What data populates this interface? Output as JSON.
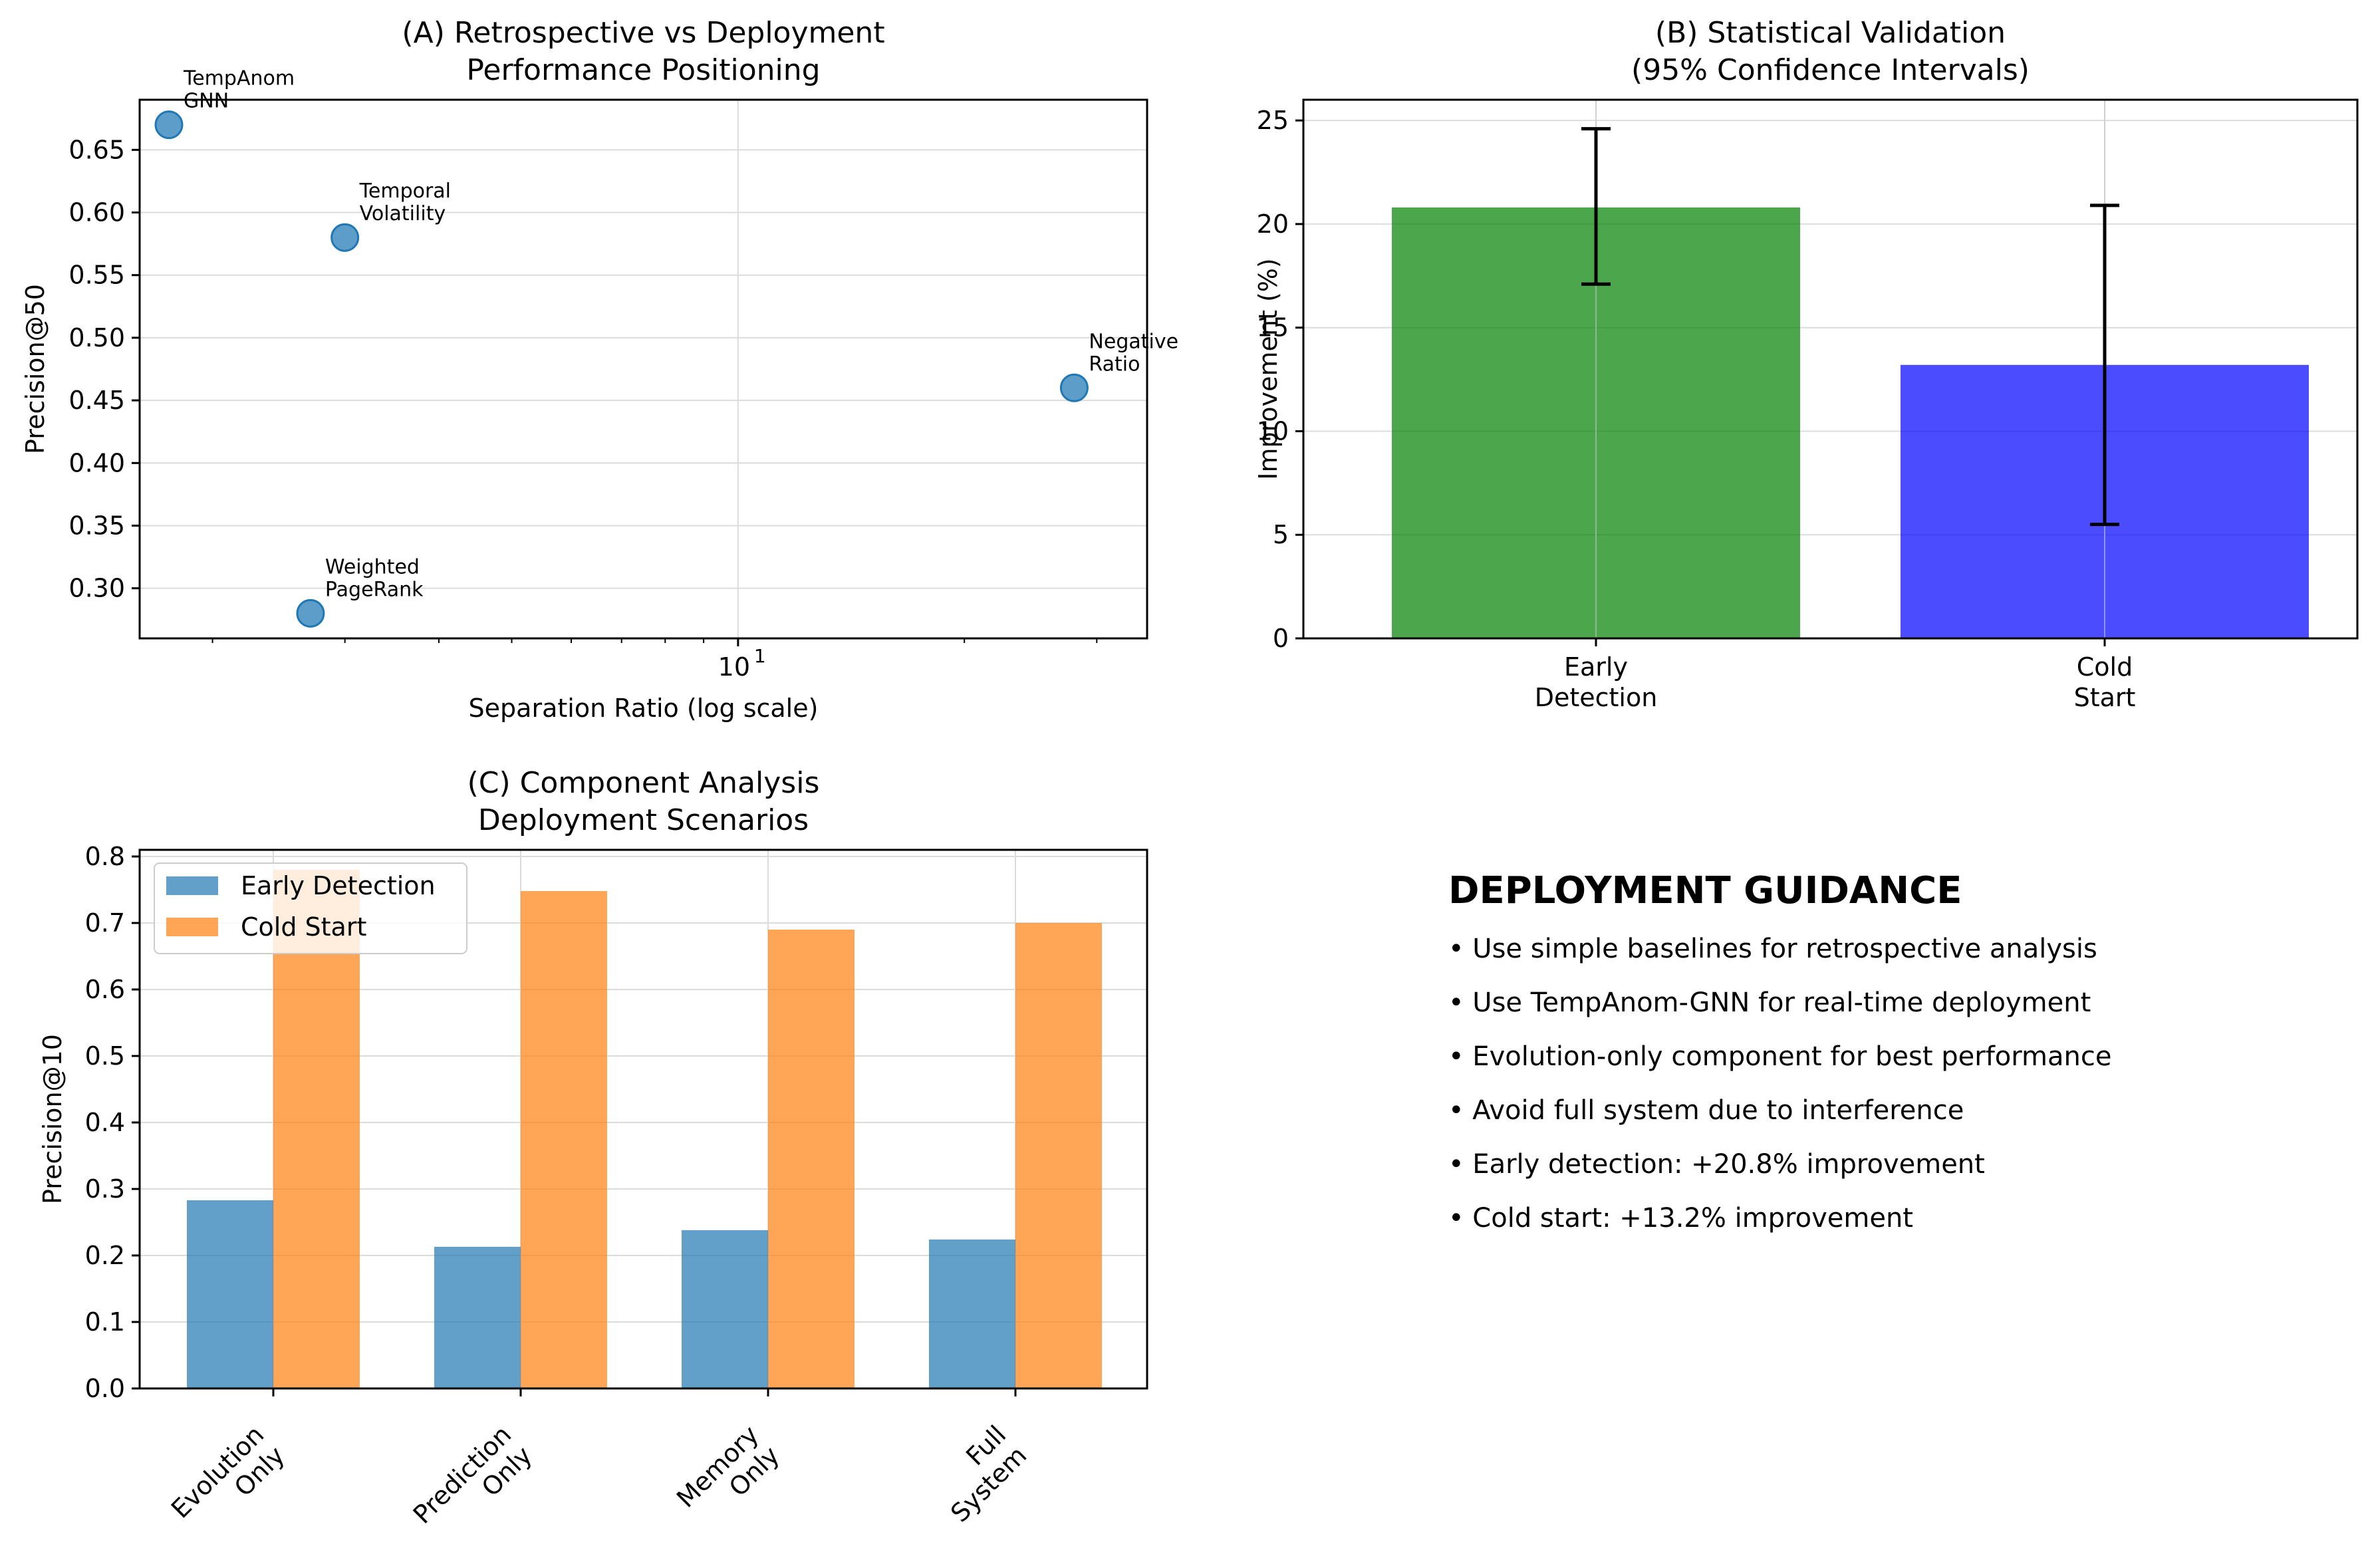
{
  "colors": {
    "scatter": "#1f77b4",
    "early": "#1f77b4",
    "cold": "#ff7f0e",
    "bar_green": "#008000",
    "bar_blue": "#0000ff"
  },
  "chart_data": [
    {
      "id": "A",
      "type": "scatter",
      "title": "(A) Retrospective vs Deployment\nPerformance Positioning",
      "xlabel": "Separation Ratio (log scale)",
      "ylabel": "Precision@50",
      "xscale": "log",
      "xlim": [
        1.6,
        35
      ],
      "ylim": [
        0.26,
        0.69
      ],
      "yticks": [
        "0.30",
        "0.35",
        "0.40",
        "0.45",
        "0.50",
        "0.55",
        "0.60",
        "0.65"
      ],
      "xtick_label": "10",
      "xtick_exp": "1",
      "grid": true,
      "points": [
        {
          "label": "TempAnom\nGNN",
          "x": 1.75,
          "y": 0.67
        },
        {
          "label": "Temporal\nVolatility",
          "x": 3.0,
          "y": 0.58
        },
        {
          "label": "Weighted\nPageRank",
          "x": 2.7,
          "y": 0.28
        },
        {
          "label": "Negative\nRatio",
          "x": 28.0,
          "y": 0.46
        }
      ]
    },
    {
      "id": "B",
      "type": "bar",
      "title": "(B) Statistical Validation\n(95% Confidence Intervals)",
      "xlabel": "",
      "ylabel": "Improvement (%)",
      "ylim": [
        0,
        26
      ],
      "yticks": [
        "0",
        "5",
        "10",
        "15",
        "20",
        "25"
      ],
      "grid": true,
      "categories": [
        "Early\nDetection",
        "Cold\nStart"
      ],
      "values": [
        20.8,
        13.2
      ],
      "ci_low": [
        17.1,
        5.5
      ],
      "ci_high": [
        24.6,
        20.9
      ]
    },
    {
      "id": "C",
      "type": "bar",
      "title": "(C) Component Analysis\nDeployment Scenarios",
      "xlabel": "",
      "ylabel": "Precision@10",
      "ylim": [
        0,
        0.81
      ],
      "yticks": [
        "0.0",
        "0.1",
        "0.2",
        "0.3",
        "0.4",
        "0.5",
        "0.6",
        "0.7",
        "0.8"
      ],
      "grid": true,
      "legend": "top-left",
      "categories": [
        "Evolution\nOnly",
        "Prediction\nOnly",
        "Memory\nOnly",
        "Full\nSystem"
      ],
      "series": [
        {
          "name": "Early Detection",
          "values": [
            0.283,
            0.213,
            0.238,
            0.224
          ]
        },
        {
          "name": "Cold Start",
          "values": [
            0.78,
            0.748,
            0.69,
            0.7
          ]
        }
      ]
    }
  ],
  "guidance": {
    "heading": "DEPLOYMENT GUIDANCE",
    "items": [
      "• Use simple baselines for retrospective analysis",
      "• Use TempAnom-GNN for real-time deployment",
      "• Evolution-only component for best performance",
      "• Avoid full system due to interference",
      "• Early detection: +20.8% improvement",
      "• Cold start: +13.2% improvement"
    ]
  }
}
